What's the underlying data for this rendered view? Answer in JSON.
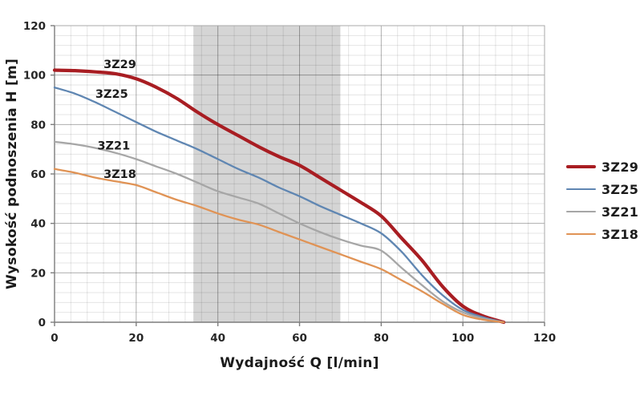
{
  "chart_data": {
    "type": "line",
    "title": "",
    "xlabel": "Wydajność Q [l/min]",
    "ylabel": "Wysokość podnoszenia H [m]",
    "xlim": [
      0,
      120
    ],
    "ylim": [
      0,
      120
    ],
    "x_ticks": [
      0,
      20,
      40,
      60,
      80,
      100,
      120
    ],
    "y_ticks": [
      0,
      20,
      40,
      60,
      80,
      100,
      120
    ],
    "grid": {
      "on": true,
      "minor_step": 4,
      "major_step": 20,
      "minor_color": "rgba(0,0,0,0.10)",
      "major_color": "rgba(0,0,0,0.32)",
      "border_color": "#a9a9a9",
      "axis_color": "#7d7d7d"
    },
    "shaded_band": {
      "x_from": 34,
      "x_to": 70,
      "color": "#d5d5d5"
    },
    "legend_position": "right-outside",
    "series": [
      {
        "name": "3Z29",
        "color": "#a81d22",
        "width": 4.2,
        "label_pos": {
          "q": 16,
          "h": 104.5
        },
        "points": [
          [
            0,
            102
          ],
          [
            5,
            101.8
          ],
          [
            10,
            101.3
          ],
          [
            15,
            100.5
          ],
          [
            20,
            98.5
          ],
          [
            25,
            95
          ],
          [
            30,
            90.5
          ],
          [
            35,
            85
          ],
          [
            40,
            80
          ],
          [
            45,
            75.5
          ],
          [
            50,
            71
          ],
          [
            55,
            67
          ],
          [
            60,
            63.5
          ],
          [
            65,
            58.5
          ],
          [
            70,
            53.5
          ],
          [
            75,
            48.5
          ],
          [
            80,
            43
          ],
          [
            85,
            34
          ],
          [
            90,
            25
          ],
          [
            95,
            14.5
          ],
          [
            100,
            6.5
          ],
          [
            105,
            2.5
          ],
          [
            110,
            0
          ]
        ]
      },
      {
        "name": "3Z25",
        "color": "#5f86b2",
        "width": 2.3,
        "label_pos": {
          "q": 14,
          "h": 92.5
        },
        "points": [
          [
            0,
            95
          ],
          [
            5,
            92.5
          ],
          [
            10,
            89
          ],
          [
            15,
            85
          ],
          [
            20,
            81
          ],
          [
            25,
            77
          ],
          [
            30,
            73.5
          ],
          [
            35,
            70
          ],
          [
            40,
            66
          ],
          [
            45,
            62
          ],
          [
            50,
            58.5
          ],
          [
            55,
            54.5
          ],
          [
            60,
            51
          ],
          [
            65,
            47
          ],
          [
            70,
            43.5
          ],
          [
            75,
            40
          ],
          [
            80,
            36
          ],
          [
            85,
            28.5
          ],
          [
            90,
            19
          ],
          [
            95,
            11
          ],
          [
            100,
            5
          ],
          [
            105,
            2
          ],
          [
            110,
            0
          ]
        ]
      },
      {
        "name": "3Z21",
        "color": "#a6a6a6",
        "width": 2.3,
        "label_pos": {
          "q": 14.5,
          "h": 71.5
        },
        "points": [
          [
            0,
            73
          ],
          [
            5,
            72
          ],
          [
            10,
            70.5
          ],
          [
            15,
            68.5
          ],
          [
            20,
            66
          ],
          [
            25,
            63
          ],
          [
            30,
            60
          ],
          [
            35,
            56.5
          ],
          [
            40,
            53
          ],
          [
            45,
            50.5
          ],
          [
            50,
            48
          ],
          [
            55,
            44
          ],
          [
            60,
            40
          ],
          [
            65,
            36.5
          ],
          [
            70,
            33.5
          ],
          [
            75,
            31
          ],
          [
            80,
            29
          ],
          [
            85,
            22
          ],
          [
            90,
            15
          ],
          [
            95,
            8.5
          ],
          [
            100,
            4
          ],
          [
            105,
            1.5
          ],
          [
            110,
            0
          ]
        ]
      },
      {
        "name": "3Z18",
        "color": "#e09355",
        "width": 2.3,
        "label_pos": {
          "q": 16,
          "h": 60
        },
        "points": [
          [
            0,
            62
          ],
          [
            5,
            60.5
          ],
          [
            10,
            58.5
          ],
          [
            15,
            57
          ],
          [
            20,
            55.5
          ],
          [
            25,
            52.5
          ],
          [
            30,
            49.5
          ],
          [
            35,
            47
          ],
          [
            40,
            44
          ],
          [
            45,
            41.5
          ],
          [
            50,
            39.5
          ],
          [
            55,
            36.5
          ],
          [
            60,
            33.5
          ],
          [
            65,
            30.5
          ],
          [
            70,
            27.5
          ],
          [
            75,
            24.5
          ],
          [
            80,
            21.5
          ],
          [
            85,
            17
          ],
          [
            90,
            12.5
          ],
          [
            95,
            7.5
          ],
          [
            100,
            3
          ],
          [
            105,
            1
          ],
          [
            110,
            0
          ]
        ]
      }
    ],
    "series_label_color": "#1a1a1a",
    "tick_label_color": "#262626"
  }
}
